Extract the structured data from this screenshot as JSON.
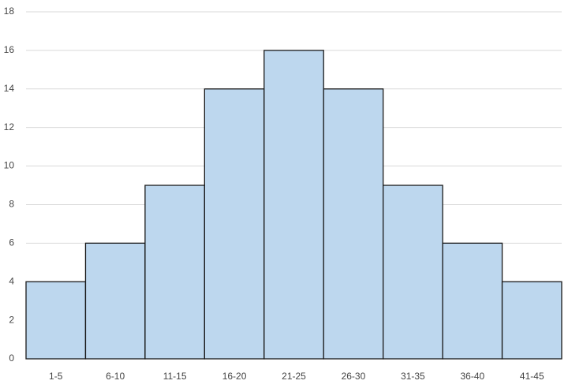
{
  "chart_data": {
    "type": "bar",
    "categories": [
      "1-5",
      "6-10",
      "11-15",
      "16-20",
      "21-25",
      "26-30",
      "31-35",
      "36-40",
      "41-45"
    ],
    "values": [
      4,
      6,
      9,
      14,
      16,
      14,
      9,
      6,
      4
    ],
    "color": "#bdd7ee",
    "ylim": [
      0,
      18
    ],
    "yticks": [
      0,
      2,
      4,
      6,
      8,
      10,
      12,
      14,
      16,
      18
    ],
    "grid": true
  }
}
